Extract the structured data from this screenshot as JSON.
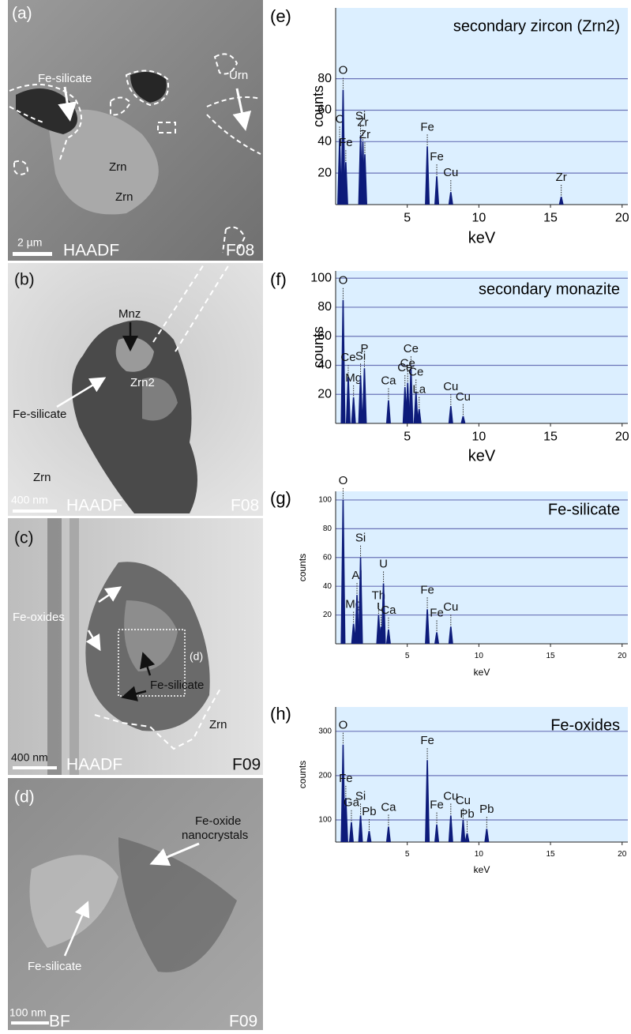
{
  "images": [
    {
      "panel": "(a)",
      "labels": [
        "Fe-silicate",
        "Urn",
        "Zrn",
        "Zrn"
      ],
      "scale_bar": "2 µm",
      "mode": "HAADF",
      "sample": "F08"
    },
    {
      "panel": "(b)",
      "labels": [
        "Mnz",
        "Zrn2",
        "Fe-silicate",
        "Zrn"
      ],
      "scale_bar": "400 nm",
      "mode": "HAADF",
      "sample": "F08"
    },
    {
      "panel": "(c)",
      "labels": [
        "Fe-oxides",
        "(d)",
        "Fe-silicate",
        "Zrn"
      ],
      "scale_bar": "400 nm",
      "mode": "HAADF",
      "sample": "F09"
    },
    {
      "panel": "(d)",
      "labels": [
        "Fe-oxide",
        "nanocrystals",
        "Fe-silicate"
      ],
      "scale_bar": "100 nm",
      "mode": "BF",
      "sample": "F09"
    }
  ],
  "chart_data": [
    {
      "type": "spectrum",
      "panel": "(e)",
      "title": "secondary zircon (Zrn2)",
      "xlabel": "keV",
      "ylabel": "counts",
      "xlim": [
        0,
        20.4
      ],
      "ylim": [
        0,
        125
      ],
      "xticks": [
        5,
        10,
        15,
        20
      ],
      "yticks": [
        20,
        40,
        60,
        80
      ],
      "grid": true,
      "color": "#0d1b7a",
      "background": "#dcefff",
      "peak_labels": [
        "C",
        "O",
        "Fe",
        "Si",
        "Zr",
        "Zr",
        "Fe",
        "Fe",
        "Cu",
        "Zr"
      ],
      "x": [
        0.28,
        0.52,
        0.71,
        1.74,
        1.9,
        2.04,
        6.4,
        7.06,
        8.04,
        15.75
      ],
      "values": [
        42,
        73,
        27,
        44,
        40,
        32,
        37,
        18,
        8,
        5
      ]
    },
    {
      "type": "spectrum",
      "panel": "(f)",
      "title": "secondary monazite",
      "xlabel": "keV",
      "ylabel": "counts",
      "xlim": [
        0,
        20.4
      ],
      "ylim": [
        0,
        105
      ],
      "xticks": [
        5,
        10,
        15,
        20
      ],
      "yticks": [
        20,
        40,
        60,
        80,
        100
      ],
      "grid": true,
      "color": "#0d1b7a",
      "background": "#dcefff",
      "peak_labels": [
        "O",
        "Ce",
        "Mg",
        "Si",
        "P",
        "Ca",
        "Ce",
        "Ce",
        "Ce",
        "Ce",
        "La",
        "Cu",
        "Cu"
      ],
      "x": [
        0.52,
        0.88,
        1.25,
        1.74,
        2.01,
        3.69,
        4.84,
        5.03,
        5.26,
        5.61,
        5.83,
        8.04,
        8.9
      ],
      "values": [
        85,
        32,
        18,
        33,
        38,
        16,
        25,
        28,
        38,
        22,
        10,
        12,
        5
      ]
    },
    {
      "type": "spectrum",
      "panel": "(g)",
      "title": "Fe-silicate",
      "xlabel": "keV",
      "ylabel": "counts",
      "xlim": [
        0,
        20.4
      ],
      "ylim": [
        0,
        106
      ],
      "xticks": [
        5,
        10,
        15,
        20
      ],
      "yticks": [
        20,
        40,
        60,
        80,
        100
      ],
      "grid": true,
      "color": "#0d1b7a",
      "background": "#dcefff",
      "peak_labels": [
        "O",
        "Mg",
        "Al",
        "Si",
        "Th",
        "U",
        "U",
        "Ca",
        "Fe",
        "Fe",
        "Cu"
      ],
      "x": [
        0.52,
        1.25,
        1.49,
        1.74,
        3.0,
        3.17,
        3.34,
        3.69,
        6.4,
        7.06,
        8.04
      ],
      "values": [
        100,
        14,
        34,
        60,
        20,
        12,
        42,
        10,
        24,
        8,
        12
      ]
    },
    {
      "type": "spectrum",
      "panel": "(h)",
      "title": "Fe-oxides",
      "xlabel": "keV",
      "ylabel": "counts",
      "xlim": [
        0,
        20.4
      ],
      "ylim": [
        50,
        355
      ],
      "xticks": [
        5,
        10,
        15,
        20
      ],
      "yticks": [
        100,
        200,
        300
      ],
      "grid": true,
      "color": "#0d1b7a",
      "background": "#dcefff",
      "peak_labels": [
        "O",
        "Fe",
        "Ga",
        "Si",
        "Pb",
        "Ca",
        "Fe",
        "Fe",
        "Cu",
        "Cu",
        "Pb",
        "Pb"
      ],
      "x": [
        0.52,
        0.71,
        1.1,
        1.74,
        2.34,
        3.69,
        6.4,
        7.06,
        8.04,
        8.9,
        9.18,
        10.55
      ],
      "values": [
        270,
        150,
        95,
        110,
        75,
        85,
        235,
        90,
        110,
        100,
        70,
        80
      ]
    }
  ]
}
